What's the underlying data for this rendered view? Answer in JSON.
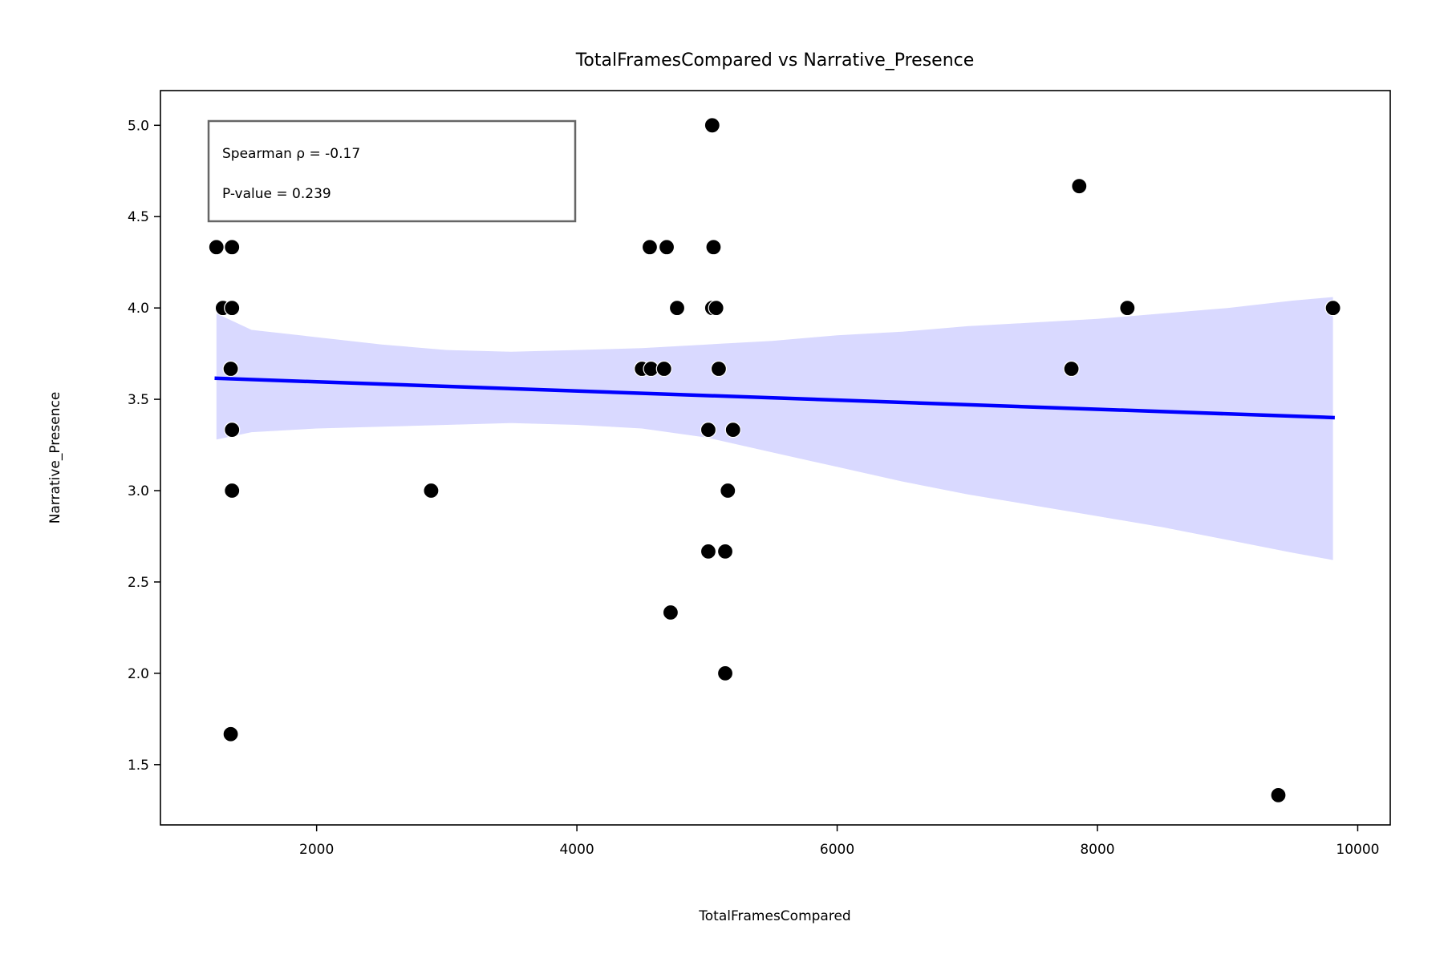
{
  "chart_data": {
    "type": "scatter",
    "title": "TotalFramesCompared vs Narrative_Presence",
    "xlabel": "TotalFramesCompared",
    "ylabel": "Narrative_Presence",
    "xlim": [
      800,
      10250
    ],
    "ylim": [
      1.17,
      5.19
    ],
    "xticks": [
      2000,
      4000,
      6000,
      8000,
      10000
    ],
    "yticks": [
      1.5,
      2.0,
      2.5,
      3.0,
      3.5,
      4.0,
      4.5,
      5.0
    ],
    "grid": false,
    "annotation": {
      "line1": "Spearman ρ = -0.17",
      "line2": "P-value = 0.239",
      "placement": "top-left"
    },
    "points": [
      {
        "x": 1230,
        "y": 4.333
      },
      {
        "x": 1350,
        "y": 4.333
      },
      {
        "x": 1280,
        "y": 4.0
      },
      {
        "x": 1350,
        "y": 4.0
      },
      {
        "x": 1340,
        "y": 3.667
      },
      {
        "x": 1350,
        "y": 3.333
      },
      {
        "x": 1350,
        "y": 3.0
      },
      {
        "x": 1340,
        "y": 1.667
      },
      {
        "x": 2880,
        "y": 3.0
      },
      {
        "x": 4500,
        "y": 3.667
      },
      {
        "x": 4570,
        "y": 3.667
      },
      {
        "x": 4670,
        "y": 3.667
      },
      {
        "x": 4560,
        "y": 4.333
      },
      {
        "x": 4690,
        "y": 4.333
      },
      {
        "x": 4770,
        "y": 4.0
      },
      {
        "x": 4720,
        "y": 2.333
      },
      {
        "x": 5010,
        "y": 3.333
      },
      {
        "x": 5010,
        "y": 2.667
      },
      {
        "x": 5040,
        "y": 5.0
      },
      {
        "x": 5050,
        "y": 4.333
      },
      {
        "x": 5040,
        "y": 4.0
      },
      {
        "x": 5070,
        "y": 4.0
      },
      {
        "x": 5090,
        "y": 3.667
      },
      {
        "x": 5140,
        "y": 2.667
      },
      {
        "x": 5140,
        "y": 2.0
      },
      {
        "x": 5160,
        "y": 3.0
      },
      {
        "x": 5200,
        "y": 3.333
      },
      {
        "x": 7800,
        "y": 3.667
      },
      {
        "x": 7860,
        "y": 4.667
      },
      {
        "x": 8230,
        "y": 4.0
      },
      {
        "x": 9390,
        "y": 1.333
      },
      {
        "x": 9810,
        "y": 4.0
      }
    ],
    "regression": {
      "x": [
        1230,
        9810
      ],
      "y": [
        3.615,
        3.4
      ],
      "color": "#0000ff"
    },
    "confidence_band": {
      "color": "#d9d9ff",
      "x": [
        1230,
        1500,
        2000,
        2500,
        3000,
        3500,
        4000,
        4500,
        5000,
        5500,
        6000,
        6500,
        7000,
        7500,
        8000,
        8500,
        9000,
        9500,
        9810
      ],
      "upper": [
        3.97,
        3.88,
        3.84,
        3.8,
        3.77,
        3.76,
        3.77,
        3.78,
        3.8,
        3.82,
        3.85,
        3.87,
        3.9,
        3.92,
        3.94,
        3.97,
        4.0,
        4.04,
        4.06
      ],
      "lower": [
        3.28,
        3.32,
        3.34,
        3.35,
        3.36,
        3.37,
        3.36,
        3.34,
        3.29,
        3.21,
        3.13,
        3.05,
        2.98,
        2.92,
        2.86,
        2.8,
        2.73,
        2.66,
        2.62
      ]
    },
    "point_color": "#000000"
  }
}
